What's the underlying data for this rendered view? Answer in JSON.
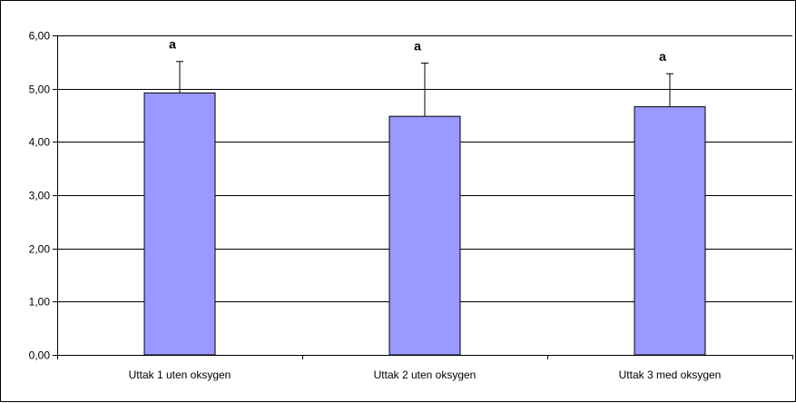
{
  "chart_data": {
    "type": "bar",
    "categories": [
      "Uttak 1 uten oksygen",
      "Uttak 2 uten oksygen",
      "Uttak 3 med oksygen"
    ],
    "values": [
      4.92,
      4.48,
      4.66
    ],
    "error_upper": [
      5.51,
      5.48,
      5.28
    ],
    "significance_letters": [
      "a",
      "a",
      "a"
    ],
    "ylim": [
      0,
      6
    ],
    "yticks": [
      0,
      1,
      2,
      3,
      4,
      5,
      6
    ],
    "ytick_labels": [
      "0,00",
      "1,00",
      "2,00",
      "3,00",
      "4,00",
      "5,00",
      "6,00"
    ],
    "grid": true,
    "bar_color": "#9999ff",
    "bar_edge_color": "#000000",
    "legend": false
  }
}
